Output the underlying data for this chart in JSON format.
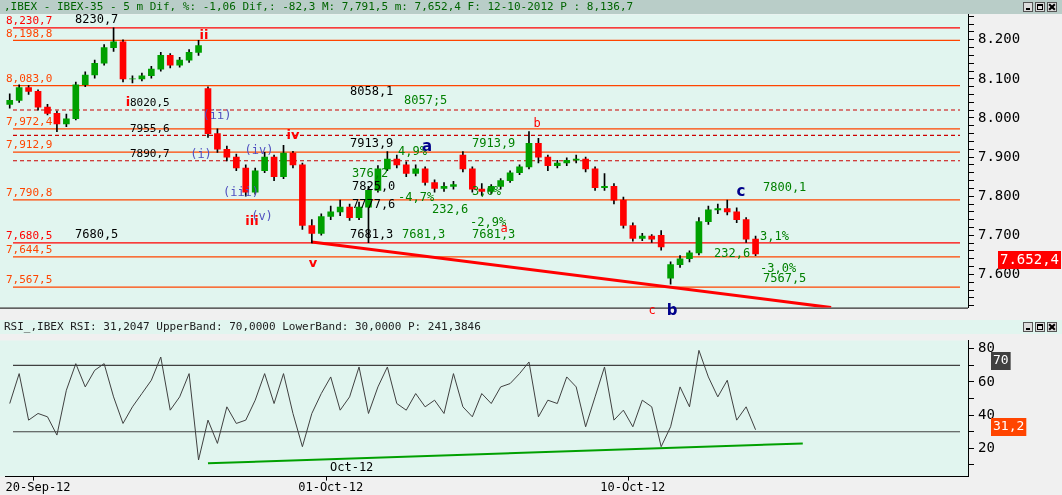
{
  "chart_data": [
    {
      "type": "candlestick",
      "title": ",IBEX - IBEX-35 -   5 m Dif, %: -1,06 Dif,: -82,3 M: 7,791,5 m: 7,652,4 F: 12-10-2012 P : 8,136,7",
      "categories": [
        null,
        null,
        null,
        null,
        null,
        null,
        null,
        null,
        null,
        null,
        null,
        null,
        null,
        null,
        null,
        null,
        null,
        null,
        null,
        null,
        null,
        null,
        null,
        null,
        null,
        null,
        null,
        null,
        null,
        null,
        null,
        null,
        null,
        null,
        null,
        null,
        null,
        null,
        null,
        null,
        null,
        null,
        null,
        null,
        null,
        null,
        null,
        null,
        null,
        null,
        null,
        null,
        null,
        null,
        null,
        null,
        null,
        null,
        null,
        null,
        null,
        null,
        null,
        null,
        null,
        null,
        null,
        null,
        null,
        null,
        null,
        null,
        null,
        null,
        null,
        null,
        null,
        null,
        null,
        null,
        null,
        null,
        null,
        null,
        null,
        null,
        null,
        null,
        null,
        null,
        null,
        null,
        null,
        null,
        null,
        null,
        null,
        null,
        null,
        null,
        null,
        null
      ],
      "ohlc": [
        [
          8035,
          8062,
          8025,
          8045
        ],
        [
          8045,
          8085,
          8040,
          8078
        ],
        [
          8078,
          8083,
          8060,
          8068
        ],
        [
          8068,
          8072,
          8020,
          8028
        ],
        [
          8028,
          8035,
          8008,
          8012
        ],
        [
          8012,
          8018,
          7965,
          7985
        ],
        [
          7985,
          8010,
          7978,
          7998
        ],
        [
          7998,
          8092,
          7995,
          8085
        ],
        [
          8085,
          8118,
          8080,
          8110
        ],
        [
          8110,
          8148,
          8102,
          8140
        ],
        [
          8140,
          8188,
          8135,
          8180
        ],
        [
          8180,
          8230.7,
          8170,
          8195
        ],
        [
          8195,
          8200,
          8092,
          8100
        ],
        [
          8100,
          8108,
          8090,
          8100
        ],
        [
          8100,
          8115,
          8095,
          8108
        ],
        [
          8108,
          8132,
          8102,
          8125
        ],
        [
          8125,
          8168,
          8120,
          8160
        ],
        [
          8160,
          8165,
          8128,
          8135
        ],
        [
          8135,
          8155,
          8130,
          8148
        ],
        [
          8148,
          8175,
          8142,
          8168
        ],
        [
          8168,
          8198.8,
          8160,
          8185
        ],
        [
          8075,
          8080,
          7950,
          7960
        ],
        [
          7960,
          7972,
          7912,
          7920
        ],
        [
          7920,
          7928,
          7890,
          7900
        ],
        [
          7900,
          7908,
          7865,
          7872
        ],
        [
          7872,
          7880,
          7800,
          7810
        ],
        [
          7810,
          7872,
          7805,
          7865
        ],
        [
          7865,
          7912,
          7860,
          7900
        ],
        [
          7900,
          7905,
          7840,
          7850
        ],
        [
          7850,
          7930,
          7845,
          7910
        ],
        [
          7910,
          7915,
          7872,
          7880
        ],
        [
          7880,
          7885,
          7715,
          7725
        ],
        [
          7725,
          7740,
          7680.5,
          7705
        ],
        [
          7705,
          7755,
          7700,
          7748
        ],
        [
          7748,
          7775,
          7740,
          7760
        ],
        [
          7760,
          7790,
          7750,
          7772
        ],
        [
          7772,
          7780,
          7738,
          7745
        ],
        [
          7745,
          7785,
          7740,
          7772
        ],
        [
          7772,
          7825,
          7681.3,
          7815
        ],
        [
          7815,
          7878,
          7810,
          7870
        ],
        [
          7870,
          7913.9,
          7865,
          7895
        ],
        [
          7895,
          7905,
          7872,
          7880
        ],
        [
          7880,
          7888,
          7850,
          7858
        ],
        [
          7858,
          7880,
          7852,
          7870
        ],
        [
          7870,
          7875,
          7828,
          7835
        ],
        [
          7835,
          7842,
          7810,
          7820
        ],
        [
          7820,
          7835,
          7812,
          7825
        ],
        [
          7825,
          7838,
          7818,
          7830
        ],
        [
          7905,
          7913.9,
          7862,
          7870
        ],
        [
          7870,
          7875,
          7810,
          7818
        ],
        [
          7818,
          7832,
          7802,
          7812
        ],
        [
          7812,
          7830,
          7806,
          7825
        ],
        [
          7825,
          7845,
          7818,
          7840
        ],
        [
          7840,
          7865,
          7835,
          7860
        ],
        [
          7860,
          7880,
          7855,
          7875
        ],
        [
          7875,
          7965,
          7870,
          7935
        ],
        [
          7935,
          7948,
          7885,
          7900
        ],
        [
          7900,
          7905,
          7865,
          7878
        ],
        [
          7878,
          7892,
          7872,
          7885
        ],
        [
          7885,
          7898,
          7878,
          7892
        ],
        [
          7892,
          7905,
          7885,
          7895
        ],
        [
          7895,
          7900,
          7862,
          7870
        ],
        [
          7870,
          7875,
          7815,
          7822
        ],
        [
          7822,
          7858,
          7815,
          7825
        ],
        [
          7825,
          7832,
          7780,
          7790
        ],
        [
          7790,
          7798,
          7718,
          7725
        ],
        [
          7725,
          7732,
          7685,
          7692
        ],
        [
          7692,
          7705,
          7686,
          7698
        ],
        [
          7698,
          7702,
          7682,
          7690
        ],
        [
          7700,
          7712,
          7662,
          7670
        ],
        [
          7590,
          7632,
          7575,
          7625
        ],
        [
          7625,
          7648,
          7618,
          7640
        ],
        [
          7640,
          7660,
          7632,
          7655
        ],
        [
          7655,
          7745,
          7650,
          7735
        ],
        [
          7735,
          7775,
          7728,
          7765
        ],
        [
          7765,
          7780,
          7755,
          7768
        ],
        [
          7768,
          7790,
          7752,
          7760
        ],
        [
          7760,
          7770,
          7732,
          7740
        ],
        [
          7740,
          7745,
          7682,
          7690
        ],
        [
          7690,
          7698,
          7648,
          7652.4
        ],
        null,
        null,
        null,
        null,
        null,
        null,
        null,
        null,
        null,
        null,
        null,
        null,
        null,
        null,
        null,
        null,
        null,
        null,
        null,
        null,
        null,
        null
      ],
      "colors": [
        "#00a000",
        "#00a000",
        "#ff0000",
        "#ff0000",
        "#ff0000",
        "#ff0000",
        "#00a000",
        "#00a000",
        "#00a000",
        "#00a000",
        "#00a000",
        "#00a000",
        "#ff0000",
        "#00a000",
        "#00a000",
        "#00a000",
        "#00a000",
        "#ff0000",
        "#00a000",
        "#00a000",
        "#00a000",
        "#ff0000",
        "#ff0000",
        "#ff0000",
        "#ff0000",
        "#ff0000",
        "#00a000",
        "#00a000",
        "#ff0000",
        "#00a000",
        "#ff0000",
        "#ff0000",
        "#ff0000",
        "#00a000",
        "#00a000",
        "#00a000",
        "#ff0000",
        "#00a000",
        "#00a000",
        "#00a000",
        "#00a000",
        "#ff0000",
        "#ff0000",
        "#00a000",
        "#ff0000",
        "#ff0000",
        "#00a000",
        "#00a000",
        "#ff0000",
        "#ff0000",
        "#ff0000",
        "#00a000",
        "#00a000",
        "#00a000",
        "#00a000",
        "#00a000",
        "#ff0000",
        "#ff0000",
        "#00a000",
        "#00a000",
        "#00a000",
        "#ff0000",
        "#ff0000",
        "#00a000",
        "#ff0000",
        "#ff0000",
        "#ff0000",
        "#00a000",
        "#ff0000",
        "#ff0000",
        "#00a000",
        "#00a000",
        "#00a000",
        "#00a000",
        "#00a000",
        "#00a000",
        "#ff0000",
        "#ff0000",
        "#ff0000",
        "#ff0000",
        null,
        null,
        null,
        null,
        null,
        null,
        null,
        null,
        null,
        null,
        null,
        null,
        null,
        null,
        null,
        null,
        null,
        null,
        null,
        null,
        null,
        null
      ],
      "series": [
        {
          "type": "line",
          "color": "#ff0000",
          "values": [
            null,
            null,
            null,
            null,
            null,
            null,
            null,
            null,
            null,
            null,
            null,
            null,
            null,
            null,
            null,
            null,
            null,
            null,
            null,
            null,
            null,
            null,
            null,
            null,
            null,
            null,
            null,
            null,
            null,
            null,
            null,
            null,
            7683,
            null,
            null,
            null,
            null,
            null,
            null,
            null,
            null,
            null,
            null,
            null,
            null,
            null,
            null,
            null,
            null,
            null,
            null,
            null,
            null,
            null,
            null,
            null,
            null,
            null,
            null,
            null,
            null,
            null,
            null,
            null,
            null,
            null,
            null,
            null,
            null,
            null,
            null,
            null,
            null,
            null,
            null,
            null,
            null,
            null,
            null,
            null,
            null,
            null,
            null,
            null,
            null,
            null,
            null,
            7515,
            null,
            null,
            null,
            null,
            null,
            null,
            null,
            null,
            null,
            null,
            null,
            null,
            null,
            null
          ]
        }
      ],
      "ylim": [
        7515,
        8265
      ],
      "yticks": [
        {
          "value": 7520,
          "label": null
        },
        {
          "value": 7540,
          "label": null
        },
        {
          "value": 7560,
          "label": null
        },
        {
          "value": 7580,
          "label": null
        },
        {
          "value": 7600,
          "label": "7.600"
        },
        {
          "value": 7620,
          "label": null
        },
        {
          "value": 7640,
          "label": null
        },
        {
          "value": 7660,
          "label": null
        },
        {
          "value": 7680,
          "label": null
        },
        {
          "value": 7700,
          "label": "7.700"
        },
        {
          "value": 7720,
          "label": null
        },
        {
          "value": 7740,
          "label": null
        },
        {
          "value": 7760,
          "label": null
        },
        {
          "value": 7780,
          "label": null
        },
        {
          "value": 7800,
          "label": "7.800"
        },
        {
          "value": 7820,
          "label": null
        },
        {
          "value": 7840,
          "label": null
        },
        {
          "value": 7860,
          "label": null
        },
        {
          "value": 7880,
          "label": null
        },
        {
          "value": 7900,
          "label": "7.900"
        },
        {
          "value": 7920,
          "label": null
        },
        {
          "value": 7940,
          "label": null
        },
        {
          "value": 7960,
          "label": null
        },
        {
          "value": 7980,
          "label": null
        },
        {
          "value": 8000,
          "label": "8.000"
        },
        {
          "value": 8020,
          "label": null
        },
        {
          "value": 8040,
          "label": null
        },
        {
          "value": 8060,
          "label": null
        },
        {
          "value": 8080,
          "label": null
        },
        {
          "value": 8100,
          "label": "8.100"
        },
        {
          "value": 8120,
          "label": null
        },
        {
          "value": 8140,
          "label": null
        },
        {
          "value": 8160,
          "label": null
        },
        {
          "value": 8180,
          "label": null
        },
        {
          "value": 8200,
          "label": "8.200"
        },
        {
          "value": 8220,
          "label": null
        },
        {
          "value": 8240,
          "label": null
        },
        {
          "value": 8260,
          "label": null
        }
      ],
      "ref_lines": [
        {
          "axis": "y",
          "value": 8230.7,
          "label": "8,230,7",
          "color": "#ff0000"
        },
        {
          "axis": "y",
          "value": 8198.8,
          "label": "8,198,8",
          "color": "#ff4500"
        },
        {
          "axis": "y",
          "value": 8083.0,
          "label": "8,083,0",
          "color": "#ff4500"
        },
        {
          "axis": "y",
          "value": 8020.5,
          "label": "8020,5",
          "color": "#cc0000",
          "line_style": "dashed"
        },
        {
          "axis": "y",
          "value": 7972.4,
          "label": "7,972,4",
          "color": "#ff4500"
        },
        {
          "axis": "y",
          "value": 7955.6,
          "label": "7955,6",
          "color": "#cc0000",
          "line_style": "dashed"
        },
        {
          "axis": "y",
          "value": 7912.9,
          "label": "7,912,9",
          "color": "#ff4500"
        },
        {
          "axis": "y",
          "value": 7890.7,
          "label": "7890,7",
          "color": "#cc0000",
          "line_style": "dashed"
        },
        {
          "axis": "y",
          "value": 7790.8,
          "label": "7,790,8",
          "color": "#ff4500"
        },
        {
          "axis": "y",
          "value": 7680.5,
          "label": "7,680,5",
          "color": "#ff0000"
        },
        {
          "axis": "y",
          "value": 7644.5,
          "label": "7,644,5",
          "color": "#ff4500"
        },
        {
          "axis": "y",
          "value": 7567.5,
          "label": "7,567,5",
          "color": "#ff4500"
        }
      ],
      "annotations": [
        {
          "text": "8230,7",
          "y": 8230.7
        },
        {
          "text": "7680,5",
          "y": 7680.5
        },
        "8058,1",
        "8057;5",
        {
          "text": "7913,9",
          "y": 7913.9
        },
        {
          "text": "7825,0",
          "y": 7825.0
        },
        {
          "text": "7777,6",
          "y": 7777.6
        },
        {
          "text": "7681,3",
          "y": 7681.3
        },
        {
          "text": "7681,3",
          "y": 7681.3
        },
        {
          "text": "7913,9",
          "y": 7913.9
        },
        {
          "text": "7681,3",
          "y": 7681.3
        },
        {
          "text": "7800,1",
          "y": 7800.1
        },
        {
          "text": "7567,5",
          "y": 7567.5
        },
        "4,9%",
        "376,2",
        "-4,7%",
        "232,6",
        "3,0%",
        "-2,9%",
        "3,1%",
        "232,6",
        "-3,0%",
        "i",
        "ii",
        "iii",
        "iv",
        "v",
        "(i)",
        "(ii)",
        "(iii)",
        "(iv)",
        "(v)",
        "a",
        "b",
        "a",
        "c",
        "b",
        "c",
        "7.652,4"
      ],
      "tick_labels": "y"
    },
    {
      "type": "line",
      "title": "RSI_,IBEX RSI: 31,2047 UpperBand: 70,0000 LowerBand: 30,0000 P: 241,3846",
      "categories": [
        null,
        null,
        null,
        "20-Sep-12",
        null,
        null,
        null,
        null,
        null,
        null,
        null,
        null,
        null,
        null,
        null,
        null,
        null,
        null,
        null,
        null,
        null,
        null,
        null,
        null,
        null,
        null,
        null,
        null,
        null,
        null,
        null,
        null,
        null,
        null,
        "01-Oct-12",
        null,
        null,
        null,
        null,
        null,
        null,
        null,
        null,
        null,
        null,
        null,
        null,
        null,
        null,
        null,
        null,
        null,
        null,
        null,
        null,
        null,
        null,
        null,
        null,
        null,
        null,
        null,
        null,
        null,
        null,
        null,
        "10-Oct-12",
        null,
        null,
        null,
        null,
        null,
        null,
        null,
        null,
        null,
        null,
        null,
        null,
        null,
        null,
        null,
        null,
        null,
        null,
        null,
        null,
        null,
        null,
        null,
        null,
        null,
        null,
        null,
        null,
        null,
        null,
        null,
        null,
        null,
        null,
        null
      ],
      "series": [
        {
          "color": "#404040",
          "values": [
            47,
            65,
            37,
            41,
            39,
            28,
            55,
            71,
            57,
            67,
            71,
            51,
            35,
            45,
            53,
            61,
            75,
            43,
            51,
            65,
            13,
            37,
            23,
            45,
            35,
            37,
            49,
            65,
            47,
            65,
            41,
            21,
            41,
            53,
            63,
            43,
            51,
            69,
            41,
            57,
            69,
            47,
            43,
            53,
            45,
            49,
            41,
            65,
            45,
            39,
            53,
            47,
            57,
            59,
            65,
            72,
            39,
            49,
            47,
            63,
            57,
            33,
            51,
            69,
            37,
            43,
            33,
            49,
            45,
            21,
            33,
            57,
            45,
            79,
            63,
            51,
            61,
            37,
            45,
            31.2,
            null,
            null,
            null,
            null,
            null,
            null,
            null,
            null,
            null,
            null,
            null,
            null,
            null,
            null,
            null,
            null,
            null,
            null,
            null,
            null,
            null,
            null
          ]
        },
        {
          "color": "#00a000",
          "values": [
            null,
            null,
            null,
            null,
            null,
            null,
            null,
            null,
            null,
            null,
            null,
            null,
            null,
            null,
            null,
            null,
            null,
            null,
            null,
            null,
            null,
            11,
            null,
            null,
            null,
            null,
            null,
            null,
            null,
            null,
            null,
            null,
            null,
            null,
            null,
            null,
            null,
            null,
            null,
            null,
            null,
            null,
            null,
            null,
            null,
            null,
            null,
            null,
            null,
            null,
            null,
            null,
            null,
            null,
            null,
            null,
            null,
            null,
            null,
            null,
            null,
            null,
            null,
            null,
            null,
            null,
            null,
            null,
            null,
            null,
            null,
            null,
            null,
            null,
            null,
            null,
            null,
            null,
            null,
            null,
            null,
            null,
            null,
            null,
            23,
            null,
            null,
            null,
            null,
            null,
            null,
            null,
            null,
            null,
            null,
            null,
            null,
            null,
            null,
            null,
            null,
            null
          ]
        }
      ],
      "ylim": [
        3,
        85
      ],
      "yticks": [
        {
          "value": 10,
          "label": null
        },
        20,
        {
          "value": 30,
          "label": null
        },
        40,
        {
          "value": 50,
          "label": null
        },
        60,
        {
          "value": 70,
          "label": null
        },
        80
      ],
      "ref_lines": [
        {
          "axis": "y",
          "value": 70,
          "color": "#404040"
        },
        {
          "axis": "y",
          "value": 30,
          "color": "#404040"
        }
      ],
      "annotations": [
        "Oct-12",
        "70",
        "31,2"
      ]
    }
  ]
}
